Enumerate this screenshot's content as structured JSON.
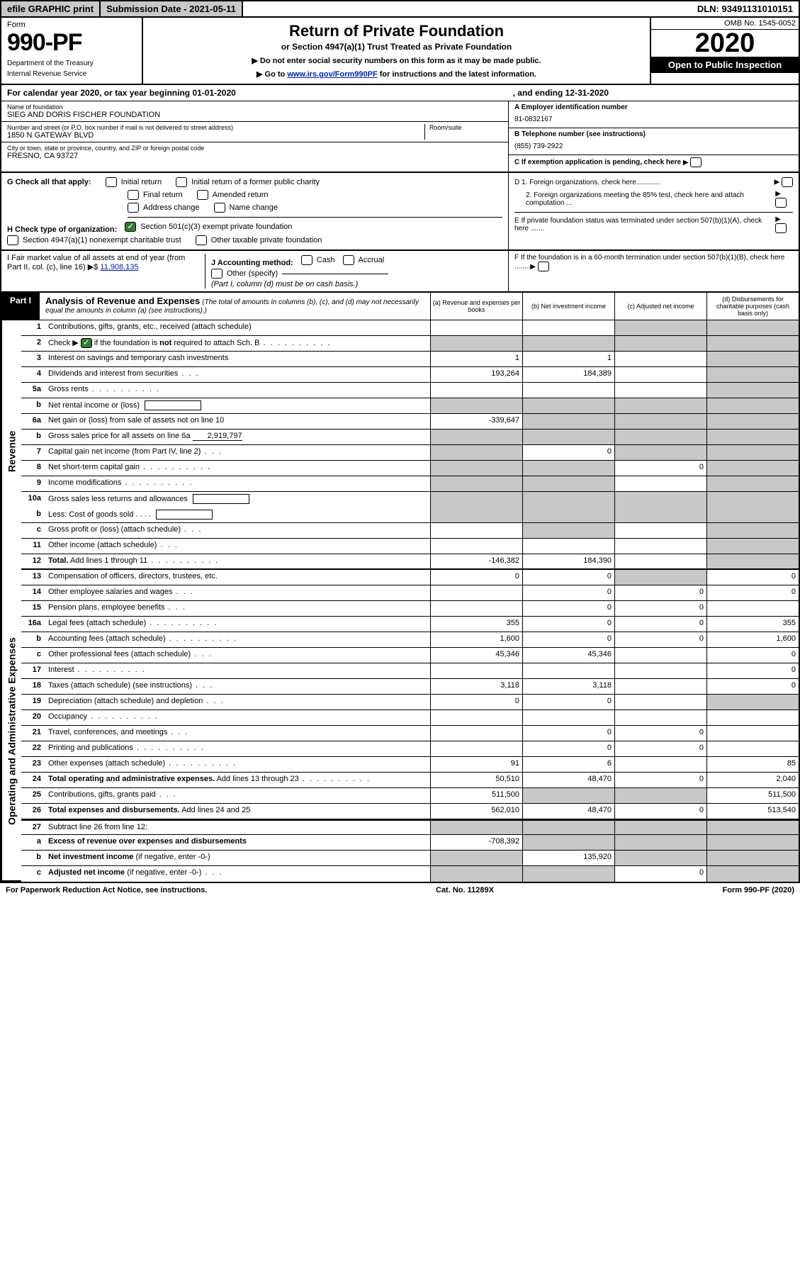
{
  "top": {
    "efile": "efile GRAPHIC print",
    "submission": "Submission Date - 2021-05-11",
    "dln": "DLN: 93491131010151"
  },
  "header": {
    "form_word": "Form",
    "form_num": "990-PF",
    "dept1": "Department of the Treasury",
    "dept2": "Internal Revenue Service",
    "title": "Return of Private Foundation",
    "subtitle": "or Section 4947(a)(1) Trust Treated as Private Foundation",
    "note1": "Do not enter social security numbers on this form as it may be made public.",
    "note2_pre": "Go to ",
    "note2_link": "www.irs.gov/Form990PF",
    "note2_post": " for instructions and the latest information.",
    "omb": "OMB No. 1545-0052",
    "year": "2020",
    "otp": "Open to Public Inspection"
  },
  "calyear": {
    "pre": "For calendar year 2020, or tax year beginning 01-01-2020",
    "mid": ", and ending 12-31-2020"
  },
  "entity": {
    "name_label": "Name of foundation",
    "name": "SIEG AND DORIS FISCHER FOUNDATION",
    "addr_label": "Number and street (or P.O. box number if mail is not delivered to street address)",
    "room_label": "Room/suite",
    "addr": "1850 N GATEWAY BLVD",
    "city_label": "City or town, state or province, country, and ZIP or foreign postal code",
    "city": "FRESNO, CA  93727",
    "a_label": "A Employer identification number",
    "a_val": "81-0832167",
    "b_label": "B Telephone number (see instructions)",
    "b_val": "(855) 739-2922",
    "c_label": "C If exemption application is pending, check here"
  },
  "g": {
    "label": "G Check all that apply:",
    "opts": [
      "Initial return",
      "Initial return of a former public charity",
      "Final return",
      "Amended return",
      "Address change",
      "Name change"
    ]
  },
  "h": {
    "label": "H Check type of organization:",
    "o1": "Section 501(c)(3) exempt private foundation",
    "o2": "Section 4947(a)(1) nonexempt charitable trust",
    "o3": "Other taxable private foundation"
  },
  "d": {
    "d1": "D 1. Foreign organizations, check here............",
    "d2": "2. Foreign organizations meeting the 85% test, check here and attach computation ...",
    "e": "E  If private foundation status was terminated under section 507(b)(1)(A), check here .......",
    "f": "F  If the foundation is in a 60-month termination under section 507(b)(1)(B), check here ........"
  },
  "i": {
    "label": "I Fair market value of all assets at end of year (from Part II, col. (c), line 16) ▶$",
    "val": "11,908,135",
    "j_label": "J Accounting method:",
    "j_cash": "Cash",
    "j_accrual": "Accrual",
    "j_other": "Other (specify)",
    "j_note": "(Part I, column (d) must be on cash basis.)"
  },
  "part1": {
    "tag": "Part I",
    "title": "Analysis of Revenue and Expenses",
    "title_note": "(The total of amounts in columns (b), (c), and (d) may not necessarily equal the amounts in column (a) (see instructions).)",
    "col_a": "(a)   Revenue and expenses per books",
    "col_b": "(b)  Net investment income",
    "col_c": "(c)  Adjusted net income",
    "col_d": "(d)  Disbursements for charitable purposes (cash basis only)"
  },
  "side": {
    "revenue": "Revenue",
    "expenses": "Operating and Administrative Expenses"
  },
  "rows": [
    {
      "n": "1",
      "label": "Contributions, gifts, grants, etc., received (attach schedule)",
      "a": "",
      "b": "",
      "c": "shade",
      "d": "shade"
    },
    {
      "n": "2",
      "label": "Check ▶ ✔ if the foundation is <b>not</b> required to attach Sch. B",
      "dots": true,
      "a": "shade",
      "b": "shade",
      "c": "shade",
      "d": "shade",
      "check": true
    },
    {
      "n": "3",
      "label": "Interest on savings and temporary cash investments",
      "a": "1",
      "b": "1",
      "c": "",
      "d": "shade"
    },
    {
      "n": "4",
      "label": "Dividends and interest from securities",
      "dots": "sm",
      "a": "193,264",
      "b": "184,389",
      "c": "",
      "d": "shade"
    },
    {
      "n": "5a",
      "label": "Gross rents",
      "dots": true,
      "a": "",
      "b": "",
      "c": "",
      "d": "shade"
    },
    {
      "n": "b",
      "label": "Net rental income or (loss) <span class='inline-box'></span>",
      "a": "shade",
      "b": "shade",
      "c": "shade",
      "d": "shade"
    },
    {
      "n": "6a",
      "label": "Net gain or (loss) from sale of assets not on line 10",
      "a": "-339,647",
      "b": "shade",
      "c": "shade",
      "d": "shade"
    },
    {
      "n": "b",
      "label": "Gross sales price for all assets on line 6a <span class='underline' style='min-width:70px;text-align:right;'>2,919,797</span>",
      "a": "shade",
      "b": "shade",
      "c": "shade",
      "d": "shade"
    },
    {
      "n": "7",
      "label": "Capital gain net income (from Part IV, line 2)",
      "dots": "sm",
      "a": "shade",
      "b": "0",
      "c": "shade",
      "d": "shade"
    },
    {
      "n": "8",
      "label": "Net short-term capital gain",
      "dots": true,
      "a": "shade",
      "b": "shade",
      "c": "0",
      "d": "shade"
    },
    {
      "n": "9",
      "label": "Income modifications",
      "dots": true,
      "a": "shade",
      "b": "shade",
      "c": "",
      "d": "shade"
    },
    {
      "n": "10a",
      "label": "Gross sales less returns and allowances <span class='inline-box'></span>",
      "a": "shade",
      "b": "shade",
      "c": "shade",
      "d": "shade",
      "nb": true
    },
    {
      "n": "b",
      "label": "Less: Cost of goods sold  .  .  .  . <span class='inline-box'></span>",
      "a": "shade",
      "b": "shade",
      "c": "shade",
      "d": "shade"
    },
    {
      "n": "c",
      "label": "Gross profit or (loss) (attach schedule)",
      "dots": "sm",
      "a": "",
      "b": "shade",
      "c": "",
      "d": "shade"
    },
    {
      "n": "11",
      "label": "Other income (attach schedule)",
      "dots": "sm",
      "a": "",
      "b": "",
      "c": "",
      "d": "shade"
    },
    {
      "n": "12",
      "label": "<b>Total.</b> Add lines 1 through 11",
      "dots": true,
      "a": "-146,382",
      "b": "184,390",
      "c": "",
      "d": "shade"
    }
  ],
  "exp_rows": [
    {
      "n": "13",
      "label": "Compensation of officers, directors, trustees, etc.",
      "a": "0",
      "b": "0",
      "c": "shade",
      "d": "0"
    },
    {
      "n": "14",
      "label": "Other employee salaries and wages",
      "dots": "sm",
      "a": "",
      "b": "0",
      "c": "0",
      "d": "0"
    },
    {
      "n": "15",
      "label": "Pension plans, employee benefits",
      "dots": "sm",
      "a": "",
      "b": "0",
      "c": "0",
      "d": ""
    },
    {
      "n": "16a",
      "label": "Legal fees (attach schedule)",
      "dots": true,
      "a": "355",
      "b": "0",
      "c": "0",
      "d": "355"
    },
    {
      "n": "b",
      "label": "Accounting fees (attach schedule)",
      "dots": true,
      "a": "1,600",
      "b": "0",
      "c": "0",
      "d": "1,600"
    },
    {
      "n": "c",
      "label": "Other professional fees (attach schedule)",
      "dots": "sm",
      "a": "45,346",
      "b": "45,346",
      "c": "",
      "d": "0"
    },
    {
      "n": "17",
      "label": "Interest",
      "dots": true,
      "a": "",
      "b": "",
      "c": "",
      "d": "0"
    },
    {
      "n": "18",
      "label": "Taxes (attach schedule) (see instructions)",
      "dots": "sm",
      "a": "3,118",
      "b": "3,118",
      "c": "",
      "d": "0"
    },
    {
      "n": "19",
      "label": "Depreciation (attach schedule) and depletion",
      "dots": "sm",
      "a": "0",
      "b": "0",
      "c": "",
      "d": "shade"
    },
    {
      "n": "20",
      "label": "Occupancy",
      "dots": true,
      "a": "",
      "b": "",
      "c": "",
      "d": ""
    },
    {
      "n": "21",
      "label": "Travel, conferences, and meetings",
      "dots": "sm",
      "a": "",
      "b": "0",
      "c": "0",
      "d": ""
    },
    {
      "n": "22",
      "label": "Printing and publications",
      "dots": true,
      "a": "",
      "b": "0",
      "c": "0",
      "d": ""
    },
    {
      "n": "23",
      "label": "Other expenses (attach schedule)",
      "dots": true,
      "a": "91",
      "b": "6",
      "c": "",
      "d": "85"
    },
    {
      "n": "24",
      "label": "<b>Total operating and administrative expenses.</b> Add lines 13 through 23",
      "dots": true,
      "a": "50,510",
      "b": "48,470",
      "c": "0",
      "d": "2,040"
    },
    {
      "n": "25",
      "label": "Contributions, gifts, grants paid",
      "dots": "sm",
      "a": "511,500",
      "b": "shade",
      "c": "shade",
      "d": "511,500"
    },
    {
      "n": "26",
      "label": "<b>Total expenses and disbursements.</b> Add lines 24 and 25",
      "a": "562,010",
      "b": "48,470",
      "c": "0",
      "d": "513,540"
    }
  ],
  "final_rows": [
    {
      "n": "27",
      "label": "Subtract line 26 from line 12:",
      "a": "shade",
      "b": "shade",
      "c": "shade",
      "d": "shade"
    },
    {
      "n": "a",
      "label": "<b>Excess of revenue over expenses and disbursements</b>",
      "a": "-708,392",
      "b": "shade",
      "c": "shade",
      "d": "shade"
    },
    {
      "n": "b",
      "label": "<b>Net investment income</b> (if negative, enter -0-)",
      "a": "shade",
      "b": "135,920",
      "c": "shade",
      "d": "shade"
    },
    {
      "n": "c",
      "label": "<b>Adjusted net income</b> (if negative, enter -0-)",
      "dots": "sm",
      "a": "shade",
      "b": "shade",
      "c": "0",
      "d": "shade"
    }
  ],
  "footer": {
    "left": "For Paperwork Reduction Act Notice, see instructions.",
    "mid": "Cat. No. 11289X",
    "right": "Form 990-PF (2020)"
  }
}
